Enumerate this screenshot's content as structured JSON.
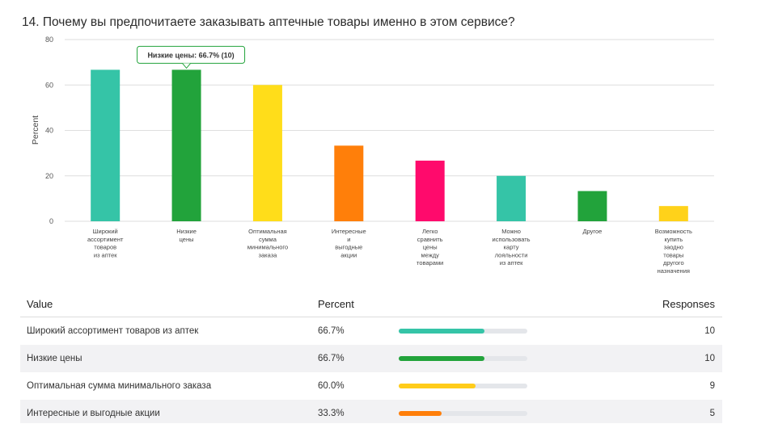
{
  "question": {
    "title": "14. Почему вы предпочитаете заказывать аптечные товары именно в этом сервисе?"
  },
  "tooltip": {
    "text": "Низкие цены: 66.7% (10)"
  },
  "chart_data": {
    "type": "bar",
    "title": "14. Почему вы предпочитаете заказывать аптечные товары именно в этом сервисе?",
    "ylabel": "Percent",
    "xlabel": "",
    "ylim": [
      0,
      80
    ],
    "yticks": [
      0,
      20,
      40,
      60,
      80
    ],
    "grid": true,
    "categories": [
      [
        "Широкий",
        "ассортимент",
        "товаров",
        "из аптек"
      ],
      [
        "Низкие",
        "цены"
      ],
      [
        "Оптимальная",
        "сумма",
        "минимального",
        "заказа"
      ],
      [
        "Интересные",
        "и",
        "выгодные",
        "акции"
      ],
      [
        "Легко",
        "сравнить",
        "цены",
        "между",
        "товарами"
      ],
      [
        "Можно",
        "использовать",
        "карту",
        "лояльности",
        "из аптек"
      ],
      [
        "Другое"
      ],
      [
        "Возможность",
        "купить",
        "заодно",
        "товары",
        "другого",
        "назначения"
      ]
    ],
    "values": [
      66.7,
      66.7,
      60.0,
      33.3,
      26.7,
      20.0,
      13.3,
      6.7
    ],
    "colors": [
      "#35c4a7",
      "#22a33b",
      "#ffdd1a",
      "#ff7f0a",
      "#ff0a6c",
      "#35c4a7",
      "#22a33b",
      "#ffd21a"
    ]
  },
  "table": {
    "headers": {
      "value": "Value",
      "percent": "Percent",
      "responses": "Responses"
    },
    "rows": [
      {
        "value": "Широкий ассортимент товаров из аптек",
        "percent": "66.7%",
        "fraction": 0.667,
        "color": "#35c4a7",
        "responses": "10"
      },
      {
        "value": "Низкие цены",
        "percent": "66.7%",
        "fraction": 0.667,
        "color": "#22a33b",
        "responses": "10"
      },
      {
        "value": "Оптимальная сумма минимального заказа",
        "percent": "60.0%",
        "fraction": 0.6,
        "color": "#ffcc1a",
        "responses": "9"
      },
      {
        "value": "Интересные и выгодные акции",
        "percent": "33.3%",
        "fraction": 0.333,
        "color": "#ff7f0a",
        "responses": "5"
      }
    ]
  }
}
